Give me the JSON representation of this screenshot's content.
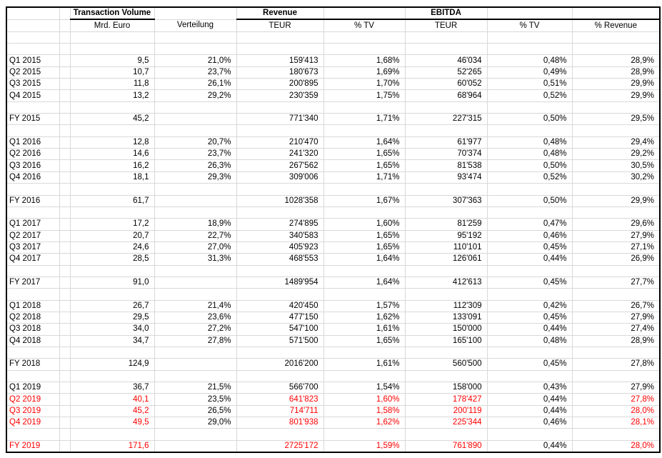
{
  "colors": {
    "accent_red": "#ff0000",
    "gridline": "#d9d9d9",
    "outer_border": "#000000"
  },
  "table": {
    "header": {
      "groups": [
        {
          "label": "Transaction Volume"
        },
        {
          "label": "Revenue"
        },
        {
          "label": "EBITDA"
        }
      ],
      "subs": [
        "Mrd. Euro",
        "Verteilung",
        "TEUR",
        "% TV",
        "TEUR",
        "% TV",
        "% Revenue"
      ]
    },
    "rows": [
      {
        "type": "spacer"
      },
      {
        "type": "spacer"
      },
      {
        "type": "data",
        "label": "Q1 2015",
        "label_red": false,
        "red": [],
        "values": [
          "9,5",
          "21,0%",
          "159'413",
          "1,68%",
          "46'034",
          "0,48%",
          "28,9%"
        ]
      },
      {
        "type": "data",
        "label": "Q2 2015",
        "label_red": false,
        "red": [],
        "values": [
          "10,7",
          "23,7%",
          "180'673",
          "1,69%",
          "52'265",
          "0,49%",
          "28,9%"
        ]
      },
      {
        "type": "data",
        "label": "Q3 2015",
        "label_red": false,
        "red": [],
        "values": [
          "11,8",
          "26,1%",
          "200'895",
          "1,70%",
          "60'052",
          "0,51%",
          "29,9%"
        ]
      },
      {
        "type": "data",
        "label": "Q4 2015",
        "label_red": false,
        "red": [],
        "values": [
          "13,2",
          "29,2%",
          "230'359",
          "1,75%",
          "68'964",
          "0,52%",
          "29,9%"
        ]
      },
      {
        "type": "spacer"
      },
      {
        "type": "data",
        "label": "FY 2015",
        "label_red": false,
        "red": [],
        "values": [
          "45,2",
          "",
          "771'340",
          "1,71%",
          "227'315",
          "0,50%",
          "29,5%"
        ]
      },
      {
        "type": "spacer"
      },
      {
        "type": "data",
        "label": "Q1 2016",
        "label_red": false,
        "red": [],
        "values": [
          "12,8",
          "20,7%",
          "210'470",
          "1,64%",
          "61'977",
          "0,48%",
          "29,4%"
        ]
      },
      {
        "type": "data",
        "label": "Q2 2016",
        "label_red": false,
        "red": [],
        "values": [
          "14,6",
          "23,7%",
          "241'320",
          "1,65%",
          "70'374",
          "0,48%",
          "29,2%"
        ]
      },
      {
        "type": "data",
        "label": "Q3 2016",
        "label_red": false,
        "red": [],
        "values": [
          "16,2",
          "26,3%",
          "267'562",
          "1,65%",
          "81'538",
          "0,50%",
          "30,5%"
        ]
      },
      {
        "type": "data",
        "label": "Q4 2016",
        "label_red": false,
        "red": [],
        "values": [
          "18,1",
          "29,3%",
          "309'006",
          "1,71%",
          "93'474",
          "0,52%",
          "30,2%"
        ]
      },
      {
        "type": "spacer"
      },
      {
        "type": "data",
        "label": "FY 2016",
        "label_red": false,
        "red": [],
        "values": [
          "61,7",
          "",
          "1028'358",
          "1,67%",
          "307'363",
          "0,50%",
          "29,9%"
        ]
      },
      {
        "type": "spacer"
      },
      {
        "type": "data",
        "label": "Q1 2017",
        "label_red": false,
        "red": [],
        "values": [
          "17,2",
          "18,9%",
          "274'895",
          "1,60%",
          "81'259",
          "0,47%",
          "29,6%"
        ]
      },
      {
        "type": "data",
        "label": "Q2 2017",
        "label_red": false,
        "red": [],
        "values": [
          "20,7",
          "22,7%",
          "340'583",
          "1,65%",
          "95'192",
          "0,46%",
          "27,9%"
        ]
      },
      {
        "type": "data",
        "label": "Q3 2017",
        "label_red": false,
        "red": [],
        "values": [
          "24,6",
          "27,0%",
          "405'923",
          "1,65%",
          "110'101",
          "0,45%",
          "27,1%"
        ]
      },
      {
        "type": "data",
        "label": "Q4 2017",
        "label_red": false,
        "red": [],
        "values": [
          "28,5",
          "31,3%",
          "468'553",
          "1,64%",
          "126'061",
          "0,44%",
          "26,9%"
        ]
      },
      {
        "type": "spacer"
      },
      {
        "type": "data",
        "label": "FY 2017",
        "label_red": false,
        "red": [],
        "values": [
          "91,0",
          "",
          "1489'954",
          "1,64%",
          "412'613",
          "0,45%",
          "27,7%"
        ]
      },
      {
        "type": "spacer"
      },
      {
        "type": "data",
        "label": "Q1 2018",
        "label_red": false,
        "red": [],
        "values": [
          "26,7",
          "21,4%",
          "420'450",
          "1,57%",
          "112'309",
          "0,42%",
          "26,7%"
        ]
      },
      {
        "type": "data",
        "label": "Q2 2018",
        "label_red": false,
        "red": [],
        "values": [
          "29,5",
          "23,6%",
          "477'150",
          "1,62%",
          "133'091",
          "0,45%",
          "27,9%"
        ]
      },
      {
        "type": "data",
        "label": "Q3 2018",
        "label_red": false,
        "red": [],
        "values": [
          "34,0",
          "27,2%",
          "547'100",
          "1,61%",
          "150'000",
          "0,44%",
          "27,4%"
        ]
      },
      {
        "type": "data",
        "label": "Q4 2018",
        "label_red": false,
        "red": [],
        "values": [
          "34,7",
          "27,8%",
          "571'500",
          "1,65%",
          "165'100",
          "0,48%",
          "28,9%"
        ]
      },
      {
        "type": "spacer"
      },
      {
        "type": "data",
        "label": "FY 2018",
        "label_red": false,
        "red": [],
        "values": [
          "124,9",
          "",
          "2016'200",
          "1,61%",
          "560'500",
          "0,45%",
          "27,8%"
        ]
      },
      {
        "type": "spacer"
      },
      {
        "type": "data",
        "label": "Q1 2019",
        "label_red": false,
        "red": [],
        "values": [
          "36,7",
          "21,5%",
          "566'700",
          "1,54%",
          "158'000",
          "0,43%",
          "27,9%"
        ]
      },
      {
        "type": "data",
        "label": "Q2 2019",
        "label_red": true,
        "red": [
          0,
          2,
          3,
          4,
          6
        ],
        "values": [
          "40,1",
          "23,5%",
          "641'823",
          "1,60%",
          "178'427",
          "0,44%",
          "27,8%"
        ]
      },
      {
        "type": "data",
        "label": "Q3 2019",
        "label_red": true,
        "red": [
          0,
          2,
          3,
          4,
          6
        ],
        "values": [
          "45,2",
          "26,5%",
          "714'711",
          "1,58%",
          "200'119",
          "0,44%",
          "28,0%"
        ]
      },
      {
        "type": "data",
        "label": "Q4 2019",
        "label_red": true,
        "red": [
          0,
          2,
          3,
          4,
          6
        ],
        "values": [
          "49,5",
          "29,0%",
          "801'938",
          "1,62%",
          "225'344",
          "0,46%",
          "28,1%"
        ]
      },
      {
        "type": "spacer"
      },
      {
        "type": "data",
        "label": "FY 2019",
        "label_red": true,
        "red": [
          0,
          2,
          3,
          4,
          6
        ],
        "values": [
          "171,6",
          "",
          "2725'172",
          "1,59%",
          "761'890",
          "0,44%",
          "28,0%"
        ]
      }
    ]
  }
}
